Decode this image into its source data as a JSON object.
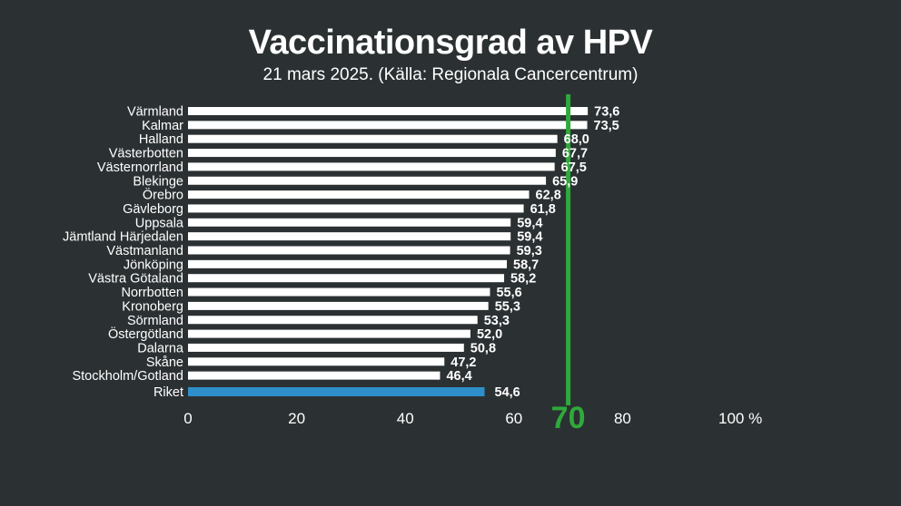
{
  "title": "Vaccinationsgrad av HPV",
  "subtitle": "21 mars 2025. (Källa: Regionala Cancercentrum)",
  "colors": {
    "background": "#2b3133",
    "bar": "#ffffff",
    "highlight_bar": "#2f8fca",
    "reference_line": "#2eaa3a",
    "text": "#ffffff"
  },
  "chart_data": {
    "type": "bar",
    "orientation": "horizontal",
    "categories": [
      "Värmland",
      "Kalmar",
      "Halland",
      "Västerbotten",
      "Västernorrland",
      "Blekinge",
      "Örebro",
      "Gävleborg",
      "Uppsala",
      "Jämtland Härjedalen",
      "Västmanland",
      "Jönköping",
      "Västra Götaland",
      "Norrbotten",
      "Kronoberg",
      "Sörmland",
      "Östergötland",
      "Dalarna",
      "Skåne",
      "Stockholm/Gotland",
      "Riket"
    ],
    "values": [
      73.6,
      73.5,
      68.0,
      67.7,
      67.5,
      65.9,
      62.8,
      61.8,
      59.4,
      59.4,
      59.3,
      58.7,
      58.2,
      55.6,
      55.3,
      53.3,
      52.0,
      50.8,
      47.2,
      46.4,
      54.6
    ],
    "value_labels": [
      "73,6",
      "73,5",
      "68,0",
      "67,7",
      "67,5",
      "65,9",
      "62,8",
      "61,8",
      "59,4",
      "59,4",
      "59,3",
      "58,7",
      "58,2",
      "55,6",
      "55,3",
      "53,3",
      "52,0",
      "50,8",
      "47,2",
      "46,4",
      "54,6"
    ],
    "highlight_category": "Riket",
    "xlim": [
      0,
      100
    ],
    "x_ticks": [
      0,
      20,
      40,
      60,
      80,
      100
    ],
    "x_tick_labels": [
      "0",
      "20",
      "40",
      "60",
      "80",
      "100 %"
    ],
    "reference_line": {
      "value": 70,
      "label": "70"
    },
    "grid": false,
    "legend": "none"
  }
}
